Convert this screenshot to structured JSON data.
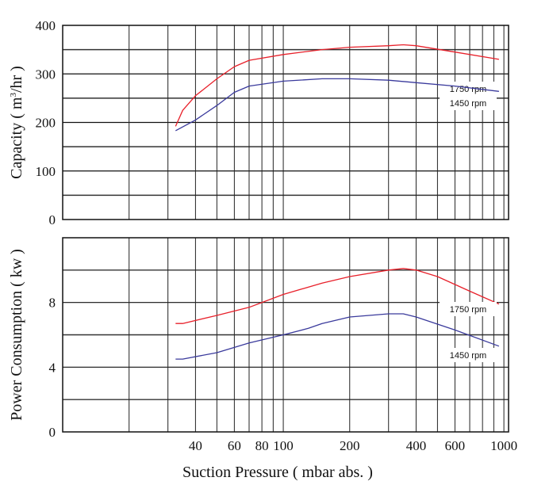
{
  "chart_data": [
    {
      "type": "line",
      "title": "",
      "xlabel": "",
      "ylabel": "Capacity ( m3/hr )",
      "ylabel_parts": {
        "pre": "Capacity ( m",
        "sup": "3",
        "post": "/hr )"
      },
      "xscale": "log",
      "xlim": [
        10,
        1050
      ],
      "ylim": [
        0,
        400
      ],
      "yticks": [
        0,
        100,
        200,
        300,
        400
      ],
      "ygrid_step": 50,
      "xgrid": [
        20,
        30,
        40,
        50,
        60,
        70,
        80,
        90,
        100,
        200,
        300,
        400,
        500,
        600,
        700,
        800,
        900,
        1000
      ],
      "grid": true,
      "series": [
        {
          "name": "1750 rpm",
          "color": "#e8202a",
          "x": [
            32.5,
            35,
            40,
            50,
            60,
            70,
            100,
            150,
            200,
            300,
            350,
            400,
            600,
            950
          ],
          "y": [
            192,
            225,
            255,
            290,
            315,
            328,
            340,
            350,
            355,
            358,
            360,
            358,
            345,
            330
          ]
        },
        {
          "name": "1450 rpm",
          "color": "#3a3a9c",
          "x": [
            32.5,
            40,
            50,
            60,
            70,
            100,
            150,
            200,
            300,
            400,
            600,
            950
          ],
          "y": [
            183,
            205,
            235,
            262,
            275,
            285,
            290,
            290,
            287,
            282,
            275,
            264
          ]
        }
      ]
    },
    {
      "type": "line",
      "title": "",
      "xlabel": "Suction Pressure ( mbar abs. )",
      "ylabel": "Power Consumption ( kw )",
      "xscale": "log",
      "xlim": [
        10,
        1050
      ],
      "ylim": [
        0,
        12
      ],
      "yticks": [
        0,
        4,
        8
      ],
      "ygrid_step": 2,
      "xticks": [
        40,
        60,
        80,
        100,
        200,
        400,
        600,
        1000
      ],
      "xgrid": [
        20,
        30,
        40,
        50,
        60,
        70,
        80,
        90,
        100,
        200,
        300,
        400,
        500,
        600,
        700,
        800,
        900,
        1000
      ],
      "grid": true,
      "series": [
        {
          "name": "1750 rpm",
          "color": "#e8202a",
          "x": [
            32.5,
            35,
            50,
            70,
            100,
            150,
            200,
            300,
            350,
            400,
            500,
            700,
            950
          ],
          "y": [
            6.7,
            6.7,
            7.2,
            7.7,
            8.5,
            9.2,
            9.6,
            10.0,
            10.1,
            10.0,
            9.6,
            8.7,
            7.9
          ]
        },
        {
          "name": "1450 rpm",
          "color": "#3a3a9c",
          "x": [
            32.5,
            35,
            50,
            70,
            100,
            130,
            150,
            200,
            300,
            350,
            400,
            600,
            950
          ],
          "y": [
            4.5,
            4.5,
            4.9,
            5.5,
            6.0,
            6.4,
            6.7,
            7.1,
            7.3,
            7.3,
            7.1,
            6.3,
            5.3
          ]
        }
      ]
    }
  ]
}
